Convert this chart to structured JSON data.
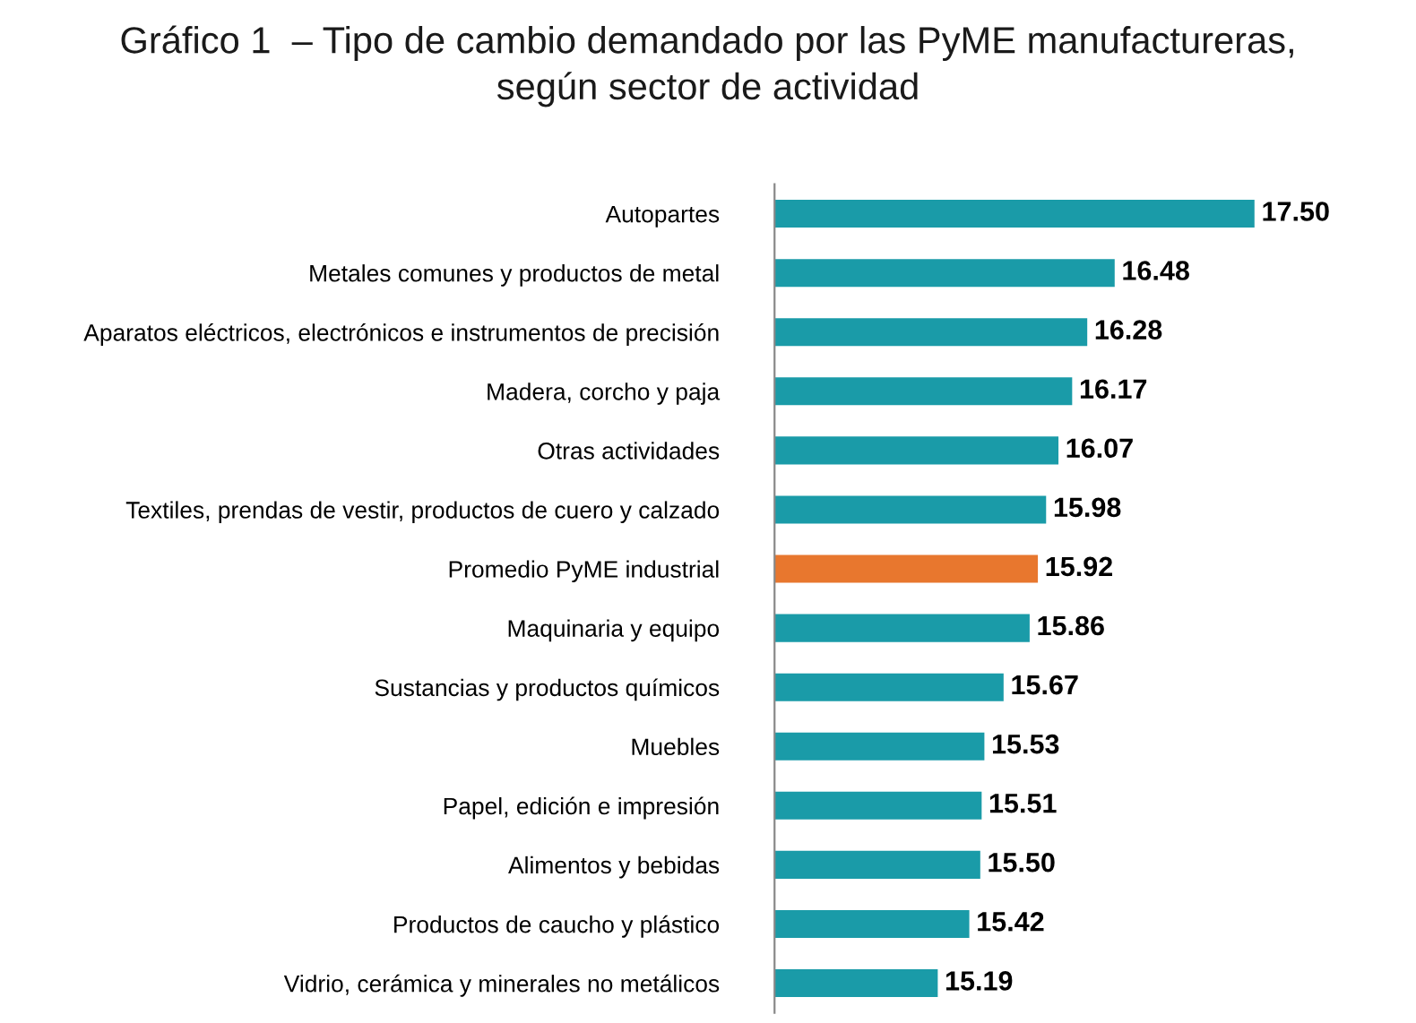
{
  "chart_data": {
    "type": "bar",
    "orientation": "horizontal",
    "title": "Gráfico 1  – Tipo de cambio demandado por las PyME manufactureras,\nsegún sector de actividad",
    "categories": [
      "Autopartes",
      "Metales comunes y productos de metal",
      "Aparatos eléctricos, electrónicos e instrumentos de precisión",
      "Madera, corcho y paja",
      "Otras actividades",
      "Textiles, prendas de vestir, productos de cuero y calzado",
      "Promedio PyME industrial",
      "Maquinaria y equipo",
      "Sustancias y productos químicos",
      "Muebles",
      "Papel, edición e impresión",
      "Alimentos y bebidas",
      "Productos de caucho y plástico",
      "Vidrio, cerámica y minerales no metálicos"
    ],
    "values": [
      17.5,
      16.48,
      16.28,
      16.17,
      16.07,
      15.98,
      15.92,
      15.86,
      15.67,
      15.53,
      15.51,
      15.5,
      15.42,
      15.19
    ],
    "colors": [
      "#1a9ba8",
      "#1a9ba8",
      "#1a9ba8",
      "#1a9ba8",
      "#1a9ba8",
      "#1a9ba8",
      "#e8772e",
      "#1a9ba8",
      "#1a9ba8",
      "#1a9ba8",
      "#1a9ba8",
      "#1a9ba8",
      "#1a9ba8",
      "#1a9ba8"
    ],
    "value_labels": [
      "17.50",
      "16.48",
      "16.28",
      "16.17",
      "16.07",
      "15.98",
      "15.92",
      "15.86",
      "15.67",
      "15.53",
      "15.51",
      "15.50",
      "15.42",
      "15.19"
    ],
    "xlim": [
      14,
      17.5
    ],
    "tick_labels": "y",
    "grid": false,
    "legend": false
  }
}
